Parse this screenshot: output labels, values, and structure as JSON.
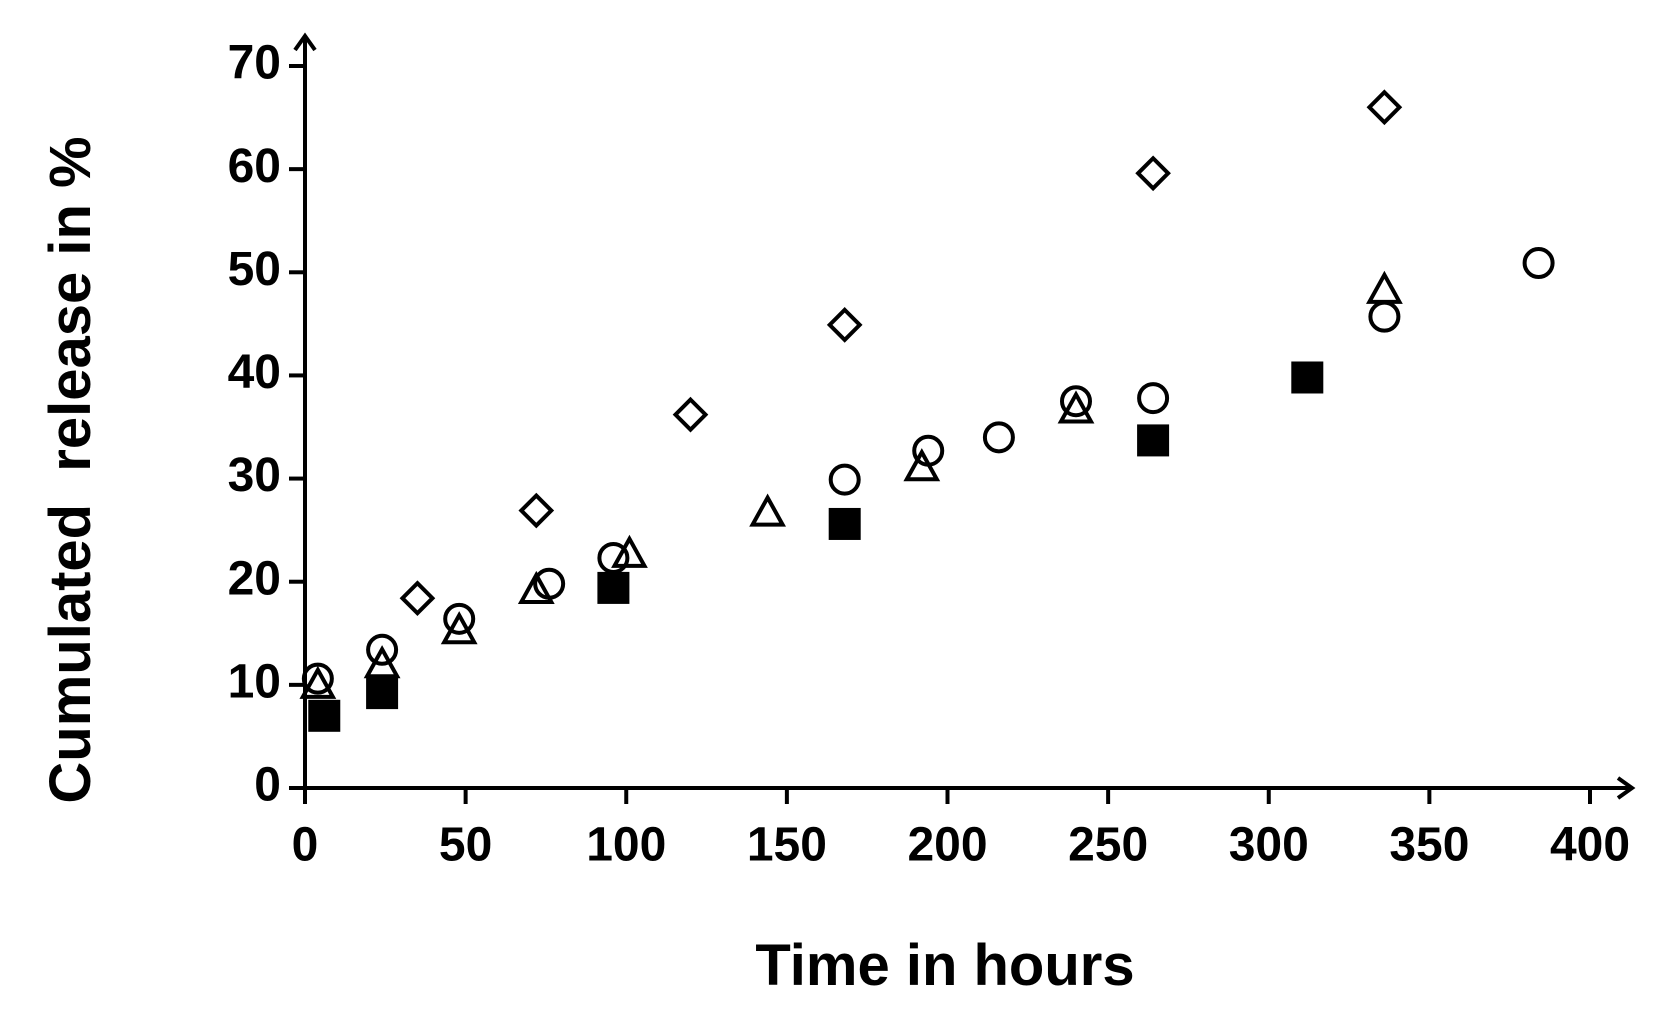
{
  "chart_data": {
    "type": "scatter",
    "xlabel": "Time in hours",
    "ylabel": "Cumulated  release in %",
    "xlim": [
      0,
      400
    ],
    "xticks": [
      0,
      50,
      100,
      150,
      200,
      250,
      300,
      350,
      400
    ],
    "ylim": [
      0,
      70
    ],
    "yticks": [
      0,
      10,
      20,
      30,
      40,
      50,
      60,
      70
    ],
    "grid": false,
    "series": [
      {
        "marker": "diamond",
        "color": "#000000",
        "filled": false,
        "x": [
          35,
          72,
          120,
          168,
          264,
          336
        ],
        "values": [
          18.4,
          26.9,
          36.2,
          44.9,
          59.6,
          66
        ]
      },
      {
        "marker": "circle",
        "color": "#000000",
        "filled": false,
        "x": [
          4,
          24,
          48,
          76,
          96,
          168,
          194,
          216,
          240,
          264,
          336,
          384
        ],
        "values": [
          10.6,
          13.4,
          16.4,
          19.8,
          22.3,
          29.9,
          32.7,
          34,
          37.5,
          37.8,
          45.7,
          50.9
        ]
      },
      {
        "marker": "triangle",
        "color": "#000000",
        "filled": false,
        "x": [
          4,
          24,
          48,
          72,
          101,
          144,
          192,
          240,
          336
        ],
        "values": [
          10,
          12,
          15.3,
          19.2,
          22.7,
          26.7,
          31.1,
          36.7,
          48.3
        ]
      },
      {
        "marker": "square",
        "color": "#000000",
        "filled": true,
        "x": [
          6,
          24,
          96,
          168,
          264,
          312
        ],
        "values": [
          7,
          9.2,
          19.4,
          25.6,
          33.7,
          39.8
        ]
      }
    ]
  }
}
